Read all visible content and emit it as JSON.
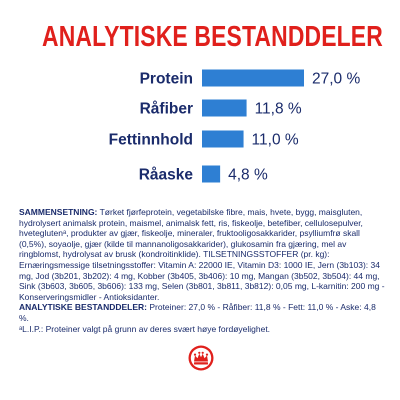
{
  "title": "ANALYTISKE BESTANDDELER",
  "chart_data": {
    "type": "bar",
    "orientation": "horizontal",
    "categories": [
      "Protein",
      "Råfiber",
      "Fettinnhold",
      "Råaske"
    ],
    "values": [
      27.0,
      11.8,
      11.0,
      4.8
    ],
    "value_labels": [
      "27,0 %",
      "11,8 %",
      "11,0 %",
      "4,8 %"
    ],
    "xlim": [
      0,
      30
    ],
    "bar_color": "#2e7fd3",
    "label_color": "#1a2b6b",
    "grid": false,
    "legend": "none"
  },
  "composition": {
    "heading": "SAMMENSETNING:",
    "text": " Tørket fjørfeprotein, vegetabilske fibre, mais, hvete, bygg, maisgluten, hydrolysert animalsk protein, maismel, animalsk fett, ris, fiskeolje, betefiber, cellulosepulver, hveteglutenᵃ, produkter av gjær, fiskeolje, mineraler, fruktooligosakkarider, psylliumfrø skall (0,5%), soyaolje, gjær (kilde til mannanoligosakkarider), glukosamin fra gjæring, mel av ringblomst, hydrolysat av brusk (kondroitinklide). TILSETNINGSSTOFFER (pr. kg): Ernæringsmessige tilsetningsstoffer: Vitamin A: 22000 IE, Vitamin D3: 1000 IE, Jern (3b103): 34 mg, Jod (3b201, 3b202): 4 mg, Kobber (3b405, 3b406): 10 mg, Mangan (3b502, 3b504): 44 mg, Sink (3b603, 3b605, 3b606): 133 mg, Selen (3b801, 3b811, 3b812): 0,05 mg, L-karnitin: 200 mg - Konserveringsmidler - Antioksidanter.",
    "analytic_heading": "ANALYTISKE BESTANDDELER:",
    "analytic_text": " Proteiner: 27,0 % - Råfiber: 11,8 % - Fett: 11,0 % - Aske: 4,8 %.",
    "footnote": "ᵃL.I.P.: Proteiner valgt på grunn av deres svært høye fordøyelighet."
  },
  "logo": {
    "color": "#e0201c",
    "icon": "royal-canin-crown-logo"
  }
}
